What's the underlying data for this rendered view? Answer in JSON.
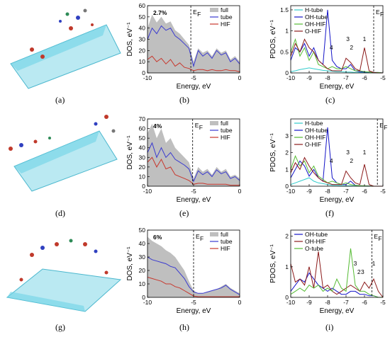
{
  "panel_labels": [
    "(a)",
    "(b)",
    "(c)",
    "(d)",
    "(e)",
    "(f)",
    "(g)",
    "(h)",
    "(i)"
  ],
  "chart_data": [
    {
      "panel": "(b)",
      "type": "area",
      "xlabel": "Energy, eV",
      "ylabel": "DOS, eV⁻¹",
      "xlim": [
        -10,
        0
      ],
      "ylim": [
        0,
        60
      ],
      "xticks": [
        -10,
        -5,
        0
      ],
      "yticks": [
        0,
        10,
        20,
        30,
        40,
        50,
        60
      ],
      "annotation": "2.7%",
      "fermi_label": "E",
      "fermi_sub": "F",
      "fermi_level": -5.3,
      "legend": [
        "full",
        "tube",
        "HIF"
      ],
      "legend_position": "top-right",
      "x": [
        -10,
        -9.5,
        -9,
        -8.5,
        -8,
        -7.5,
        -7,
        -6.5,
        -6,
        -5.5,
        -5,
        -4.5,
        -4,
        -3.5,
        -3,
        -2.5,
        -2,
        -1.5,
        -1,
        -0.5,
        0
      ],
      "series": [
        {
          "name": "full",
          "color": "#bfbfbf",
          "values": [
            40,
            52,
            45,
            50,
            44,
            46,
            38,
            35,
            30,
            25,
            10,
            22,
            18,
            20,
            15,
            22,
            18,
            20,
            12,
            15,
            10
          ]
        },
        {
          "name": "tube",
          "color": "#3a3ad0",
          "values": [
            30,
            40,
            35,
            42,
            38,
            40,
            33,
            30,
            26,
            22,
            6,
            20,
            15,
            18,
            13,
            20,
            16,
            18,
            10,
            13,
            8
          ]
        },
        {
          "name": "HIF",
          "color": "#c8372d",
          "values": [
            12,
            15,
            10,
            13,
            8,
            12,
            6,
            9,
            5,
            4,
            2,
            3,
            3,
            2,
            3,
            2,
            2,
            3,
            2,
            2,
            1
          ]
        }
      ]
    },
    {
      "panel": "(c)",
      "type": "line",
      "xlabel": "Energy, eV",
      "ylabel": "PDOS, eV⁻¹",
      "xlim": [
        -10,
        -5
      ],
      "ylim": [
        0,
        1.6
      ],
      "xticks": [
        -10,
        -9,
        -8,
        -7,
        -6,
        -5
      ],
      "yticks": [
        0.0,
        0.5,
        1.0,
        1.5
      ],
      "fermi_label": "E",
      "fermi_sub": "F",
      "fermi_level": -5.5,
      "peak_labels": [
        {
          "text": "1",
          "x": -6.0
        },
        {
          "text": "2",
          "x": -6.7
        },
        {
          "text": "3",
          "x": -6.9
        },
        {
          "text": "4",
          "x": -7.8
        }
      ],
      "legend": [
        "H-tube",
        "OH-tube",
        "OH-HIF",
        "O-HIF"
      ],
      "legend_position": "top-left",
      "x": [
        -10,
        -9.75,
        -9.5,
        -9.25,
        -9,
        -8.75,
        -8.5,
        -8.25,
        -8,
        -7.75,
        -7.5,
        -7.25,
        -7,
        -6.75,
        -6.5,
        -6.25,
        -6,
        -5.75,
        -5.5,
        -5.25,
        -5
      ],
      "series": [
        {
          "name": "H-tube",
          "color": "#33cccc",
          "values": [
            0.03,
            0.05,
            0.08,
            0.1,
            0.12,
            0.1,
            0.08,
            0.06,
            0.05,
            0.04,
            0.03,
            0.03,
            0.02,
            0.02,
            0.01,
            0.01,
            0.01,
            0.01,
            0.0,
            0.0,
            0.0
          ]
        },
        {
          "name": "OH-tube",
          "color": "#1515c8",
          "values": [
            0.3,
            0.6,
            0.5,
            0.7,
            0.4,
            0.6,
            0.3,
            0.2,
            1.5,
            0.3,
            0.15,
            0.1,
            0.1,
            0.2,
            0.05,
            0.03,
            0.02,
            0.02,
            0.01,
            0.01,
            0.0
          ]
        },
        {
          "name": "OH-HIF",
          "color": "#55bb33",
          "values": [
            0.5,
            0.8,
            0.4,
            0.6,
            0.3,
            0.5,
            0.2,
            0.15,
            0.1,
            0.15,
            0.1,
            0.1,
            0.15,
            0.1,
            0.05,
            0.05,
            0.03,
            0.02,
            0.01,
            0.01,
            0.0
          ]
        },
        {
          "name": "O-HIF",
          "color": "#8b1a1a",
          "values": [
            0.4,
            0.7,
            0.5,
            0.8,
            0.6,
            0.5,
            0.3,
            0.2,
            0.1,
            0.05,
            0.05,
            0.05,
            0.35,
            0.25,
            0.1,
            0.05,
            0.6,
            0.05,
            0.01,
            0.0,
            0.0
          ]
        }
      ]
    },
    {
      "panel": "(e)",
      "type": "area",
      "xlabel": "Energy, eV",
      "ylabel": "DOS, eV⁻¹",
      "xlim": [
        -10,
        0
      ],
      "ylim": [
        0,
        70
      ],
      "xticks": [
        -10,
        -5,
        0
      ],
      "yticks": [
        0,
        10,
        20,
        30,
        40,
        50,
        60,
        70
      ],
      "annotation": "4%",
      "fermi_label": "E",
      "fermi_sub": "F",
      "fermi_level": -5.1,
      "legend": [
        "full",
        "tube",
        "HIF"
      ],
      "legend_position": "top-right",
      "x": [
        -10,
        -9.5,
        -9,
        -8.5,
        -8,
        -7.5,
        -7,
        -6.5,
        -6,
        -5.5,
        -5,
        -4.5,
        -4,
        -3.5,
        -3,
        -2.5,
        -2,
        -1.5,
        -1,
        -0.5,
        0
      ],
      "series": [
        {
          "name": "full",
          "color": "#bfbfbf",
          "values": [
            55,
            65,
            50,
            60,
            45,
            50,
            40,
            35,
            30,
            25,
            8,
            20,
            15,
            18,
            12,
            20,
            15,
            18,
            10,
            12,
            8
          ]
        },
        {
          "name": "tube",
          "color": "#3a3ad0",
          "values": [
            35,
            45,
            30,
            40,
            30,
            35,
            28,
            25,
            22,
            18,
            5,
            16,
            12,
            15,
            10,
            17,
            13,
            15,
            8,
            10,
            6
          ]
        },
        {
          "name": "HIF",
          "color": "#c8372d",
          "values": [
            25,
            30,
            20,
            28,
            18,
            20,
            12,
            10,
            8,
            6,
            2,
            3,
            3,
            2,
            2,
            2,
            2,
            2,
            1,
            1,
            1
          ]
        }
      ]
    },
    {
      "panel": "(f)",
      "type": "line",
      "xlabel": "Energy, eV",
      "ylabel": "PDOS, eV⁻¹",
      "xlim": [
        -10,
        -5
      ],
      "ylim": [
        0,
        4
      ],
      "xticks": [
        -10,
        -9,
        -8,
        -7,
        -6,
        -5
      ],
      "yticks": [
        0,
        1,
        2,
        3
      ],
      "fermi_label": "E",
      "fermi_sub": "F",
      "fermi_level": -5.3,
      "peak_labels": [
        {
          "text": "1",
          "x": -6.0
        },
        {
          "text": "2",
          "x": -6.7
        },
        {
          "text": "3",
          "x": -6.9
        },
        {
          "text": "4",
          "x": -7.8
        }
      ],
      "legend": [
        "H-tube",
        "OH-tube",
        "OH-HIF",
        "O-HIF"
      ],
      "legend_position": "top-left",
      "x": [
        -10,
        -9.75,
        -9.5,
        -9.25,
        -9,
        -8.75,
        -8.5,
        -8.25,
        -8,
        -7.75,
        -7.5,
        -7.25,
        -7,
        -6.75,
        -6.5,
        -6.25,
        -6,
        -5.75,
        -5.5,
        -5.25,
        -5
      ],
      "series": [
        {
          "name": "H-tube",
          "color": "#33cccc",
          "values": [
            0.1,
            0.2,
            0.3,
            0.4,
            0.5,
            0.3,
            0.2,
            0.15,
            0.1,
            0.05,
            0.05,
            0.03,
            0.02,
            0.02,
            0.01,
            0.01,
            0.01,
            0.0,
            0.0,
            0.0,
            0.0
          ]
        },
        {
          "name": "OH-tube",
          "color": "#1515c8",
          "values": [
            0.5,
            1.0,
            1.5,
            1.2,
            0.6,
            1.0,
            0.5,
            0.3,
            3.5,
            0.5,
            0.2,
            0.1,
            0.1,
            0.3,
            0.05,
            0.03,
            0.02,
            0.01,
            0.0,
            0.0,
            0.0
          ]
        },
        {
          "name": "OH-HIF",
          "color": "#55bb33",
          "values": [
            1.0,
            1.8,
            1.2,
            1.5,
            0.8,
            1.2,
            0.6,
            0.4,
            0.2,
            0.3,
            0.2,
            0.1,
            0.2,
            0.1,
            0.05,
            0.03,
            0.02,
            0.01,
            0.0,
            0.0,
            0.0
          ]
        },
        {
          "name": "O-HIF",
          "color": "#8b1a1a",
          "values": [
            0.8,
            1.4,
            1.0,
            1.7,
            1.2,
            0.8,
            0.5,
            0.3,
            0.2,
            0.1,
            0.1,
            0.1,
            0.9,
            0.5,
            0.2,
            0.1,
            1.3,
            0.1,
            0.0,
            0.0,
            0.0
          ]
        }
      ]
    },
    {
      "panel": "(h)",
      "type": "area",
      "xlabel": "Energy, eV",
      "ylabel": "DOS, eV⁻¹",
      "xlim": [
        -10,
        0
      ],
      "ylim": [
        0,
        50
      ],
      "xticks": [
        -10,
        -5,
        0
      ],
      "yticks": [
        0,
        10,
        20,
        30,
        40,
        50
      ],
      "annotation": "6%",
      "fermi_label": "E",
      "fermi_sub": "F",
      "fermi_level": -5.0,
      "legend": [
        "full",
        "tube",
        "HIF"
      ],
      "legend_position": "top-right",
      "x": [
        -10,
        -9.5,
        -9,
        -8.5,
        -8,
        -7.5,
        -7,
        -6.5,
        -6,
        -5.5,
        -5,
        -4.5,
        -4,
        -3.5,
        -3,
        -2.5,
        -2,
        -1.5,
        -1,
        -0.5,
        0
      ],
      "series": [
        {
          "name": "full",
          "color": "#bfbfbf",
          "values": [
            45,
            42,
            40,
            38,
            35,
            33,
            30,
            25,
            20,
            12,
            5,
            3,
            3,
            4,
            5,
            6,
            8,
            10,
            7,
            5,
            3
          ]
        },
        {
          "name": "tube",
          "color": "#3a3ad0",
          "values": [
            30,
            28,
            27,
            26,
            25,
            23,
            22,
            18,
            14,
            8,
            4,
            3,
            3,
            4,
            5,
            6,
            7,
            9,
            6,
            4,
            2
          ]
        },
        {
          "name": "HIF",
          "color": "#c8372d",
          "values": [
            15,
            14,
            13,
            12,
            10,
            10,
            8,
            7,
            5,
            3,
            1,
            0.5,
            0.5,
            0.5,
            0.5,
            0.5,
            0.5,
            0.5,
            0.5,
            0.5,
            0.5
          ]
        }
      ]
    },
    {
      "panel": "(i)",
      "type": "line",
      "xlabel": "Energy, eV",
      "ylabel": "PDOS, eV⁻¹",
      "xlim": [
        -10,
        -5
      ],
      "ylim": [
        0,
        2.2
      ],
      "xticks": [
        -10,
        -9,
        -8,
        -7,
        -6,
        -5
      ],
      "yticks": [
        0,
        1,
        2
      ],
      "fermi_label": "E",
      "fermi_sub": "F",
      "fermi_level": -5.6,
      "peak_labels": [
        {
          "text": "1",
          "x": -5.5
        },
        {
          "text": "2",
          "x": -6.3
        },
        {
          "text": "3",
          "x": -6.5
        },
        {
          "text": "3",
          "x": -6.1
        }
      ],
      "legend": [
        "OH-tube",
        "OH-HIF",
        "O-tube"
      ],
      "legend_position": "top-left",
      "x": [
        -10,
        -9.75,
        -9.5,
        -9.25,
        -9,
        -8.75,
        -8.5,
        -8.25,
        -8,
        -7.75,
        -7.5,
        -7.25,
        -7,
        -6.75,
        -6.5,
        -6.25,
        -6,
        -5.75,
        -5.5,
        -5.25,
        -5
      ],
      "series": [
        {
          "name": "OH-tube",
          "color": "#1515c8",
          "values": [
            0.2,
            0.4,
            0.6,
            0.5,
            0.8,
            0.6,
            0.4,
            0.3,
            0.2,
            0.3,
            0.2,
            0.1,
            0.1,
            0.2,
            0.2,
            0.1,
            0.1,
            0.05,
            0.05,
            0.0,
            0.0
          ]
        },
        {
          "name": "OH-HIF",
          "color": "#8b1a1a",
          "values": [
            1.1,
            0.5,
            0.6,
            0.4,
            1.0,
            0.3,
            1.5,
            0.3,
            0.4,
            0.2,
            0.1,
            0.2,
            0.3,
            0.4,
            0.3,
            0.2,
            0.5,
            0.3,
            0.6,
            0.2,
            0.0
          ]
        },
        {
          "name": "O-tube",
          "color": "#55bb33",
          "values": [
            0.1,
            0.2,
            0.3,
            0.2,
            0.4,
            0.3,
            0.4,
            0.2,
            0.3,
            0.2,
            0.6,
            0.3,
            0.2,
            1.6,
            0.4,
            0.2,
            0.2,
            0.1,
            0.05,
            0.0,
            0.0
          ]
        }
      ]
    }
  ]
}
